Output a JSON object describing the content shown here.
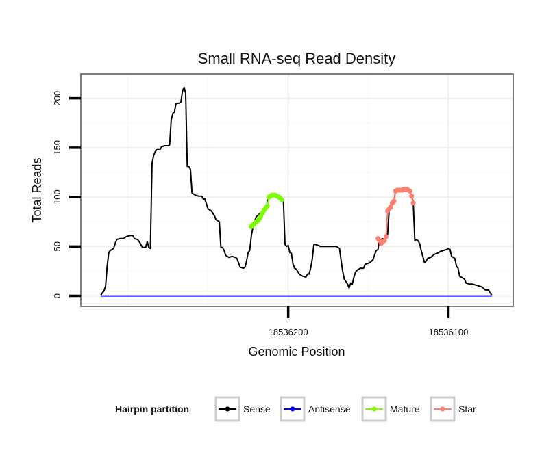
{
  "chart_data": {
    "type": "line",
    "title": "Small RNA-seq Read Density",
    "xlabel": "Genomic Position",
    "ylabel": "Total Reads",
    "x_reversed": true,
    "xlim": [
      18536329,
      18536060
    ],
    "ylim": [
      -10,
      224
    ],
    "x_ticks": [
      18536200,
      18536100
    ],
    "x_tick_labels": [
      "18536200",
      "18536100"
    ],
    "y_ticks": [
      0,
      50,
      100,
      150,
      200
    ],
    "y_tick_labels": [
      "0",
      "50",
      "100",
      "150",
      "200"
    ],
    "grid": true,
    "legend": {
      "title": "Hairpin partition",
      "position": "bottom",
      "items": [
        {
          "label": "Sense",
          "color": "#000000"
        },
        {
          "label": "Antisense",
          "color": "#0000ff"
        },
        {
          "label": "Mature",
          "color": "#7cfc00"
        },
        {
          "label": "Star",
          "color": "#fa8072"
        }
      ]
    },
    "series": [
      {
        "name": "Sense",
        "color": "#000000",
        "style": "line",
        "points": [
          [
            18536317,
            1
          ],
          [
            18536315,
            5
          ],
          [
            18536314,
            10
          ],
          [
            18536313,
            30
          ],
          [
            18536312,
            44
          ],
          [
            18536311,
            46
          ],
          [
            18536310,
            47
          ],
          [
            18536309,
            48
          ],
          [
            18536308,
            53
          ],
          [
            18536307,
            57
          ],
          [
            18536305,
            58
          ],
          [
            18536303,
            58
          ],
          [
            18536301,
            60
          ],
          [
            18536299,
            61
          ],
          [
            18536297,
            61
          ],
          [
            18536296,
            58
          ],
          [
            18536294,
            57
          ],
          [
            18536293,
            55
          ],
          [
            18536292,
            52
          ],
          [
            18536291,
            49
          ],
          [
            18536289,
            49
          ],
          [
            18536288,
            55
          ],
          [
            18536287,
            49
          ],
          [
            18536286,
            48
          ],
          [
            18536285,
            134
          ],
          [
            18536284,
            142
          ],
          [
            18536283,
            146
          ],
          [
            18536282,
            148
          ],
          [
            18536280,
            148
          ],
          [
            18536279,
            151
          ],
          [
            18536277,
            152
          ],
          [
            18536275,
            152
          ],
          [
            18536274,
            153
          ],
          [
            18536273,
            178
          ],
          [
            18536272,
            185
          ],
          [
            18536271,
            186
          ],
          [
            18536270,
            195
          ],
          [
            18536268,
            195
          ],
          [
            18536267,
            196
          ],
          [
            18536266,
            207
          ],
          [
            18536265,
            211
          ],
          [
            18536264,
            205
          ],
          [
            18536263,
            131
          ],
          [
            18536262,
            131
          ],
          [
            18536261,
            128
          ],
          [
            18536260,
            104
          ],
          [
            18536258,
            102
          ],
          [
            18536256,
            101
          ],
          [
            18536254,
            101
          ],
          [
            18536253,
            98
          ],
          [
            18536252,
            98
          ],
          [
            18536250,
            88
          ],
          [
            18536248,
            86
          ],
          [
            18536246,
            81
          ],
          [
            18536245,
            77
          ],
          [
            18536243,
            75
          ],
          [
            18536242,
            49
          ],
          [
            18536241,
            49
          ],
          [
            18536240,
            46
          ],
          [
            18536239,
            41
          ],
          [
            18536237,
            39
          ],
          [
            18536235,
            40
          ],
          [
            18536233,
            39
          ],
          [
            18536232,
            38
          ],
          [
            18536230,
            29
          ],
          [
            18536228,
            28
          ],
          [
            18536227,
            29
          ],
          [
            18536226,
            35
          ],
          [
            18536225,
            44
          ],
          [
            18536224,
            46
          ],
          [
            18536223,
            61
          ],
          [
            18536222,
            70
          ],
          [
            18536221,
            75
          ],
          [
            18536220,
            80
          ],
          [
            18536218,
            83
          ],
          [
            18536216,
            86
          ],
          [
            18536214,
            89
          ],
          [
            18536213,
            95
          ],
          [
            18536212,
            100
          ],
          [
            18536211,
            101
          ],
          [
            18536209,
            102
          ],
          [
            18536207,
            102
          ],
          [
            18536205,
            100
          ],
          [
            18536203,
            97
          ],
          [
            18536202,
            52
          ],
          [
            18536201,
            50
          ],
          [
            18536200,
            51
          ],
          [
            18536199,
            44
          ],
          [
            18536198,
            43
          ],
          [
            18536197,
            32
          ],
          [
            18536196,
            28
          ],
          [
            18536195,
            27
          ],
          [
            18536193,
            22
          ],
          [
            18536191,
            20
          ],
          [
            18536189,
            19
          ],
          [
            18536188,
            22
          ],
          [
            18536187,
            22
          ],
          [
            18536186,
            28
          ],
          [
            18536185,
            37
          ],
          [
            18536184,
            52
          ],
          [
            18536183,
            52
          ],
          [
            18536181,
            51
          ],
          [
            18536180,
            50
          ],
          [
            18536178,
            50
          ],
          [
            18536176,
            50
          ],
          [
            18536174,
            50
          ],
          [
            18536172,
            50
          ],
          [
            18536170,
            50
          ],
          [
            18536168,
            48
          ],
          [
            18536167,
            36
          ],
          [
            18536166,
            25
          ],
          [
            18536165,
            17
          ],
          [
            18536163,
            12
          ],
          [
            18536162,
            8
          ],
          [
            18536161,
            13
          ],
          [
            18536160,
            12
          ],
          [
            18536159,
            19
          ],
          [
            18536158,
            24
          ],
          [
            18536157,
            26
          ],
          [
            18536155,
            28
          ],
          [
            18536153,
            28
          ],
          [
            18536152,
            32
          ],
          [
            18536150,
            33
          ],
          [
            18536148,
            35
          ],
          [
            18536147,
            37
          ],
          [
            18536146,
            42
          ],
          [
            18536145,
            46
          ],
          [
            18536144,
            47
          ],
          [
            18536143,
            57
          ],
          [
            18536142,
            57
          ],
          [
            18536141,
            58
          ],
          [
            18536140,
            57
          ],
          [
            18536139,
            58
          ],
          [
            18536138,
            62
          ],
          [
            18536137,
            87
          ],
          [
            18536136,
            91
          ],
          [
            18536135,
            94
          ],
          [
            18536134,
            97
          ],
          [
            18536133,
            106
          ],
          [
            18536131,
            107
          ],
          [
            18536129,
            107
          ],
          [
            18536127,
            108
          ],
          [
            18536125,
            108
          ],
          [
            18536124,
            107
          ],
          [
            18536123,
            100
          ],
          [
            18536122,
            96
          ],
          [
            18536121,
            56
          ],
          [
            18536120,
            57
          ],
          [
            18536119,
            56
          ],
          [
            18536118,
            53
          ],
          [
            18536117,
            46
          ],
          [
            18536116,
            40
          ],
          [
            18536115,
            34
          ],
          [
            18536114,
            35
          ],
          [
            18536113,
            38
          ],
          [
            18536111,
            39
          ],
          [
            18536109,
            42
          ],
          [
            18536107,
            43
          ],
          [
            18536105,
            45
          ],
          [
            18536103,
            46
          ],
          [
            18536101,
            47
          ],
          [
            18536100,
            48
          ],
          [
            18536099,
            47
          ],
          [
            18536098,
            40
          ],
          [
            18536096,
            38
          ],
          [
            18536095,
            30
          ],
          [
            18536094,
            28
          ],
          [
            18536093,
            20
          ],
          [
            18536091,
            18
          ],
          [
            18536090,
            17
          ],
          [
            18536089,
            13
          ],
          [
            18536087,
            12
          ],
          [
            18536085,
            12
          ],
          [
            18536083,
            11
          ],
          [
            18536081,
            10
          ],
          [
            18536079,
            9
          ],
          [
            18536077,
            6
          ],
          [
            18536075,
            6
          ],
          [
            18536074,
            3
          ],
          [
            18536073,
            1
          ]
        ]
      },
      {
        "name": "Antisense",
        "color": "#0000ff",
        "style": "line",
        "points": [
          [
            18536317,
            0
          ],
          [
            18536073,
            0
          ]
        ]
      },
      {
        "name": "Mature",
        "color": "#7cfc00",
        "style": "points",
        "points": [
          [
            18536223,
            70
          ],
          [
            18536222,
            72
          ],
          [
            18536221,
            73
          ],
          [
            18536220,
            75
          ],
          [
            18536219,
            76
          ],
          [
            18536218,
            78
          ],
          [
            18536217,
            81
          ],
          [
            18536216,
            84
          ],
          [
            18536215,
            87
          ],
          [
            18536214,
            89
          ],
          [
            18536213,
            91
          ],
          [
            18536212,
            100
          ],
          [
            18536211,
            101
          ],
          [
            18536210,
            102
          ],
          [
            18536209,
            102
          ],
          [
            18536208,
            102
          ],
          [
            18536207,
            101
          ],
          [
            18536206,
            100
          ],
          [
            18536205,
            99
          ],
          [
            18536204,
            97
          ]
        ]
      },
      {
        "name": "Star",
        "color": "#fa8072",
        "style": "points",
        "points": [
          [
            18536144,
            58
          ],
          [
            18536143,
            56
          ],
          [
            18536142,
            53
          ],
          [
            18536141,
            55
          ],
          [
            18536140,
            56
          ],
          [
            18536139,
            60
          ],
          [
            18536138,
            86
          ],
          [
            18536137,
            88
          ],
          [
            18536136,
            90
          ],
          [
            18536135,
            94
          ],
          [
            18536134,
            96
          ],
          [
            18536133,
            106
          ],
          [
            18536132,
            107
          ],
          [
            18536131,
            107
          ],
          [
            18536130,
            107
          ],
          [
            18536129,
            107
          ],
          [
            18536128,
            108
          ],
          [
            18536127,
            108
          ],
          [
            18536126,
            108
          ],
          [
            18536125,
            107
          ],
          [
            18536124,
            106
          ],
          [
            18536123,
            101
          ],
          [
            18536122,
            94
          ]
        ]
      }
    ]
  }
}
